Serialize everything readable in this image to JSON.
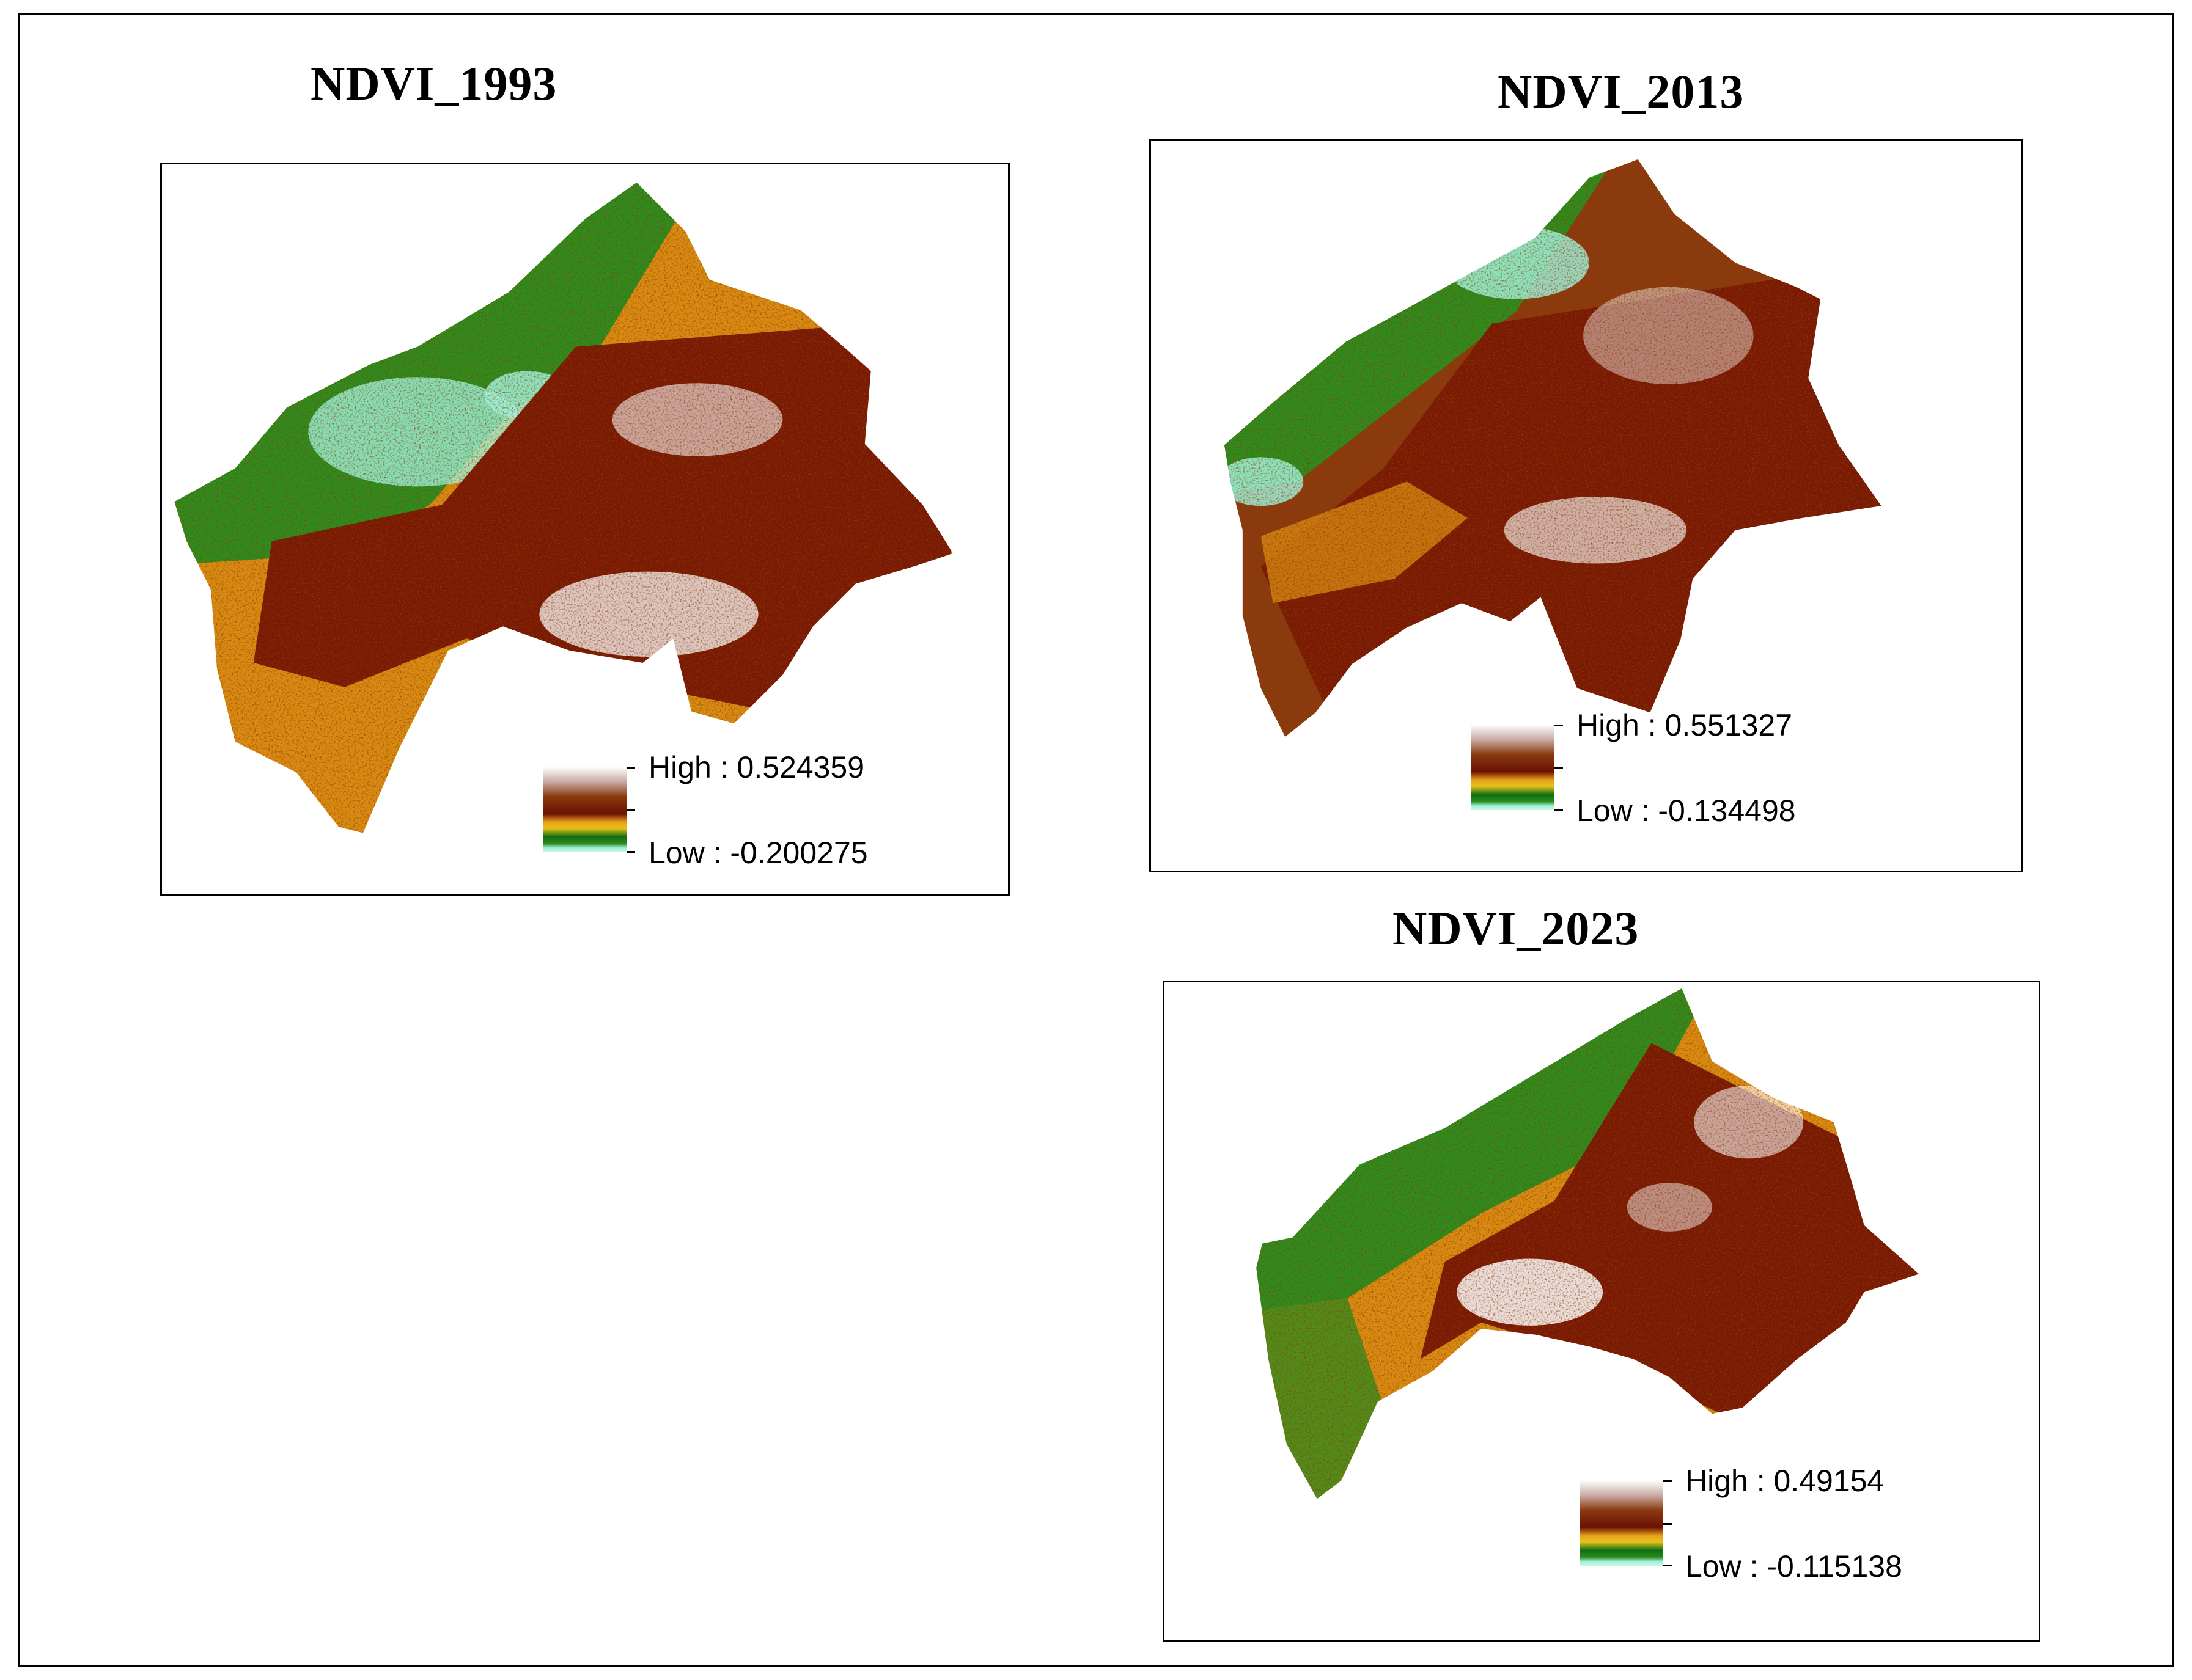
{
  "maps": [
    {
      "title": "NDVI_1993",
      "legend": {
        "high": "High : 0.524359",
        "low": "Low : -0.200275"
      }
    },
    {
      "title": "NDVI_2013",
      "legend": {
        "high": "High : 0.551327",
        "low": "Low : -0.134498"
      }
    },
    {
      "title": "NDVI_2023",
      "legend": {
        "high": "High : 0.49154",
        "low": "Low : -0.115138"
      }
    }
  ],
  "colors": {
    "white_high": "#ffffff",
    "dark_red": "#7a1a05",
    "brown": "#8b3a0f",
    "orange": "#d98a12",
    "yellow": "#e8c21a",
    "green": "#2e8b1e",
    "dark_green": "#0f6e12",
    "aqua_low": "#9ff0d8"
  }
}
